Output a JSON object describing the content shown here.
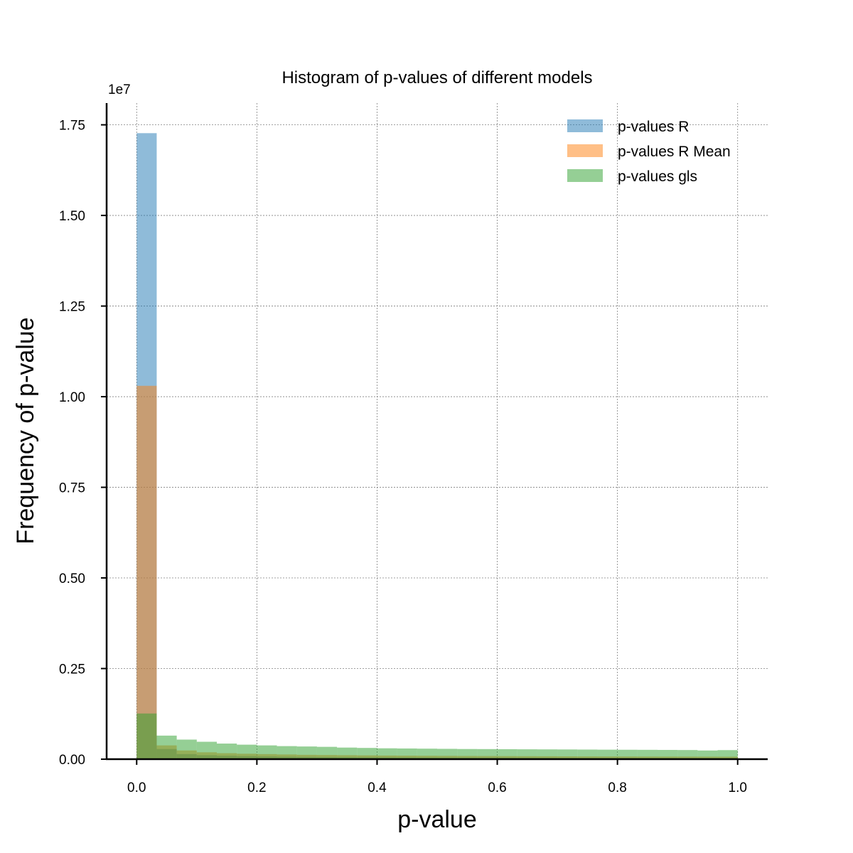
{
  "chart_data": {
    "type": "bar",
    "subtype": "overlapping-histogram",
    "title": "Histogram of p-values of different models",
    "xlabel": "p-value",
    "ylabel": "Frequency of p-value",
    "y_offset_label": "1e7",
    "xlim": [
      -0.05,
      1.05
    ],
    "ylim": [
      0,
      18100000.0
    ],
    "x_ticks": [
      0.0,
      0.2,
      0.4,
      0.6,
      0.8,
      1.0
    ],
    "x_tick_labels": [
      "0.0",
      "0.2",
      "0.4",
      "0.6",
      "0.8",
      "1.0"
    ],
    "y_ticks": [
      0,
      2500000,
      5000000,
      7500000,
      10000000,
      12500000,
      15000000,
      17500000
    ],
    "y_tick_labels": [
      "0.00",
      "0.25",
      "0.50",
      "0.75",
      "1.00",
      "1.25",
      "1.50",
      "1.75"
    ],
    "grid": true,
    "legend_position": "top-right",
    "bins": 30,
    "bin_range": [
      0,
      1
    ],
    "series": [
      {
        "name": "p-values R",
        "color": "#1f77b4",
        "values": [
          17270000,
          280000,
          140000,
          110000,
          95000,
          85000,
          75000,
          68000,
          62000,
          58000,
          55000,
          52000,
          50000,
          48000,
          46000,
          45000,
          44000,
          43000,
          42000,
          41000,
          40000,
          39000,
          38000,
          37000,
          36000,
          35000,
          35000,
          34000,
          34000,
          33000
        ]
      },
      {
        "name": "p-values R Mean",
        "color": "#ff7f0e",
        "values": [
          10300000,
          380000,
          240000,
          190000,
          165000,
          150000,
          140000,
          130000,
          120000,
          115000,
          110000,
          105000,
          100000,
          97000,
          94000,
          91000,
          88000,
          86000,
          84000,
          82000,
          80000,
          78000,
          76000,
          75000,
          74000,
          73000,
          72000,
          71000,
          70000,
          69000
        ]
      },
      {
        "name": "p-values gls",
        "color": "#2ca02c",
        "values": [
          1260000,
          650000,
          540000,
          480000,
          430000,
          400000,
          380000,
          360000,
          350000,
          340000,
          320000,
          310000,
          300000,
          295000,
          290000,
          285000,
          280000,
          278000,
          275000,
          272000,
          270000,
          268000,
          265000,
          262000,
          260000,
          258000,
          255000,
          252000,
          240000,
          250000
        ]
      }
    ]
  }
}
